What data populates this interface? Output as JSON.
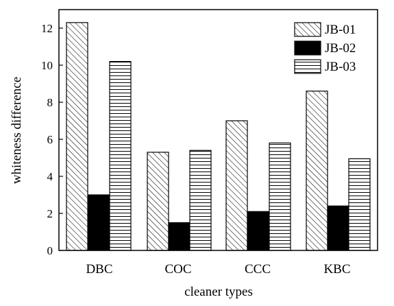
{
  "chart_data": {
    "type": "bar",
    "title": "",
    "xlabel": "cleaner types",
    "ylabel": "whiteness difference",
    "ylim": [
      0,
      13
    ],
    "yticks": [
      0,
      2,
      4,
      6,
      8,
      10,
      12
    ],
    "categories": [
      "DBC",
      "COC",
      "CCC",
      "KBC"
    ],
    "series": [
      {
        "name": "JB-01",
        "values": [
          12.3,
          5.3,
          7.0,
          8.6
        ],
        "pattern": "diagonal-hatch",
        "color": "#000000"
      },
      {
        "name": "JB-02",
        "values": [
          3.0,
          1.5,
          2.1,
          2.4
        ],
        "pattern": "solid",
        "color": "#000000"
      },
      {
        "name": "JB-03",
        "values": [
          10.2,
          5.4,
          5.8,
          4.95
        ],
        "pattern": "horizontal-lines",
        "color": "#000000"
      }
    ],
    "legend_position": "top-right",
    "grid": false
  }
}
